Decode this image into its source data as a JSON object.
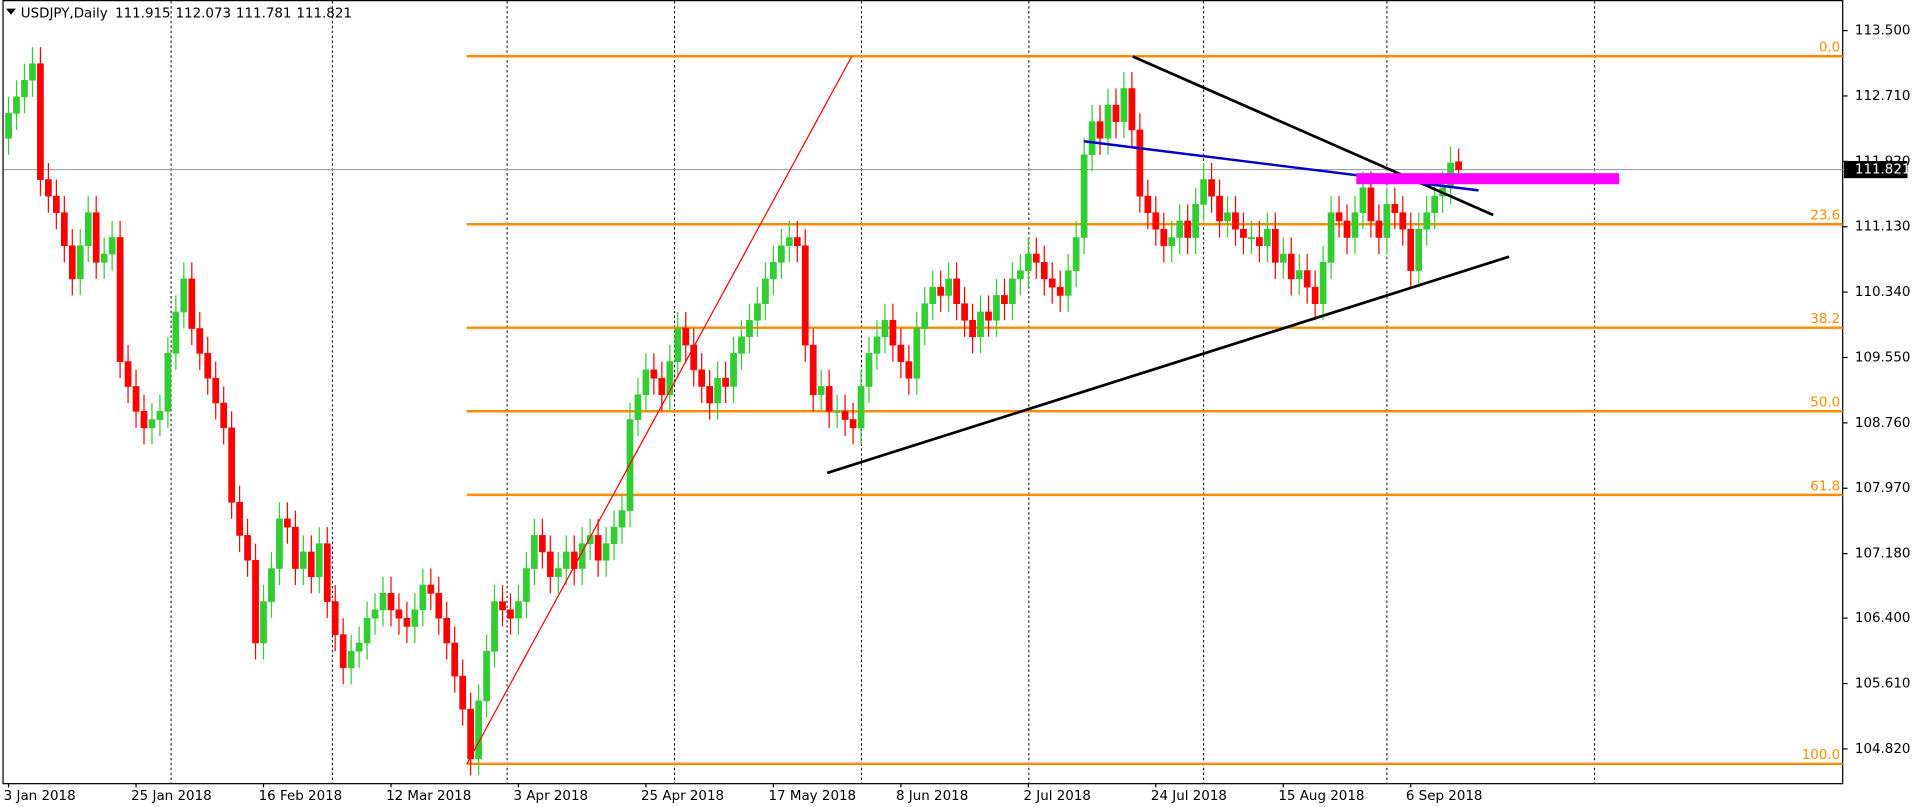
{
  "chart_data": {
    "type": "candlestick",
    "title": "USDJPY,Daily",
    "up_color": "#32cd32",
    "down_color": "#ff0000",
    "fib_color": "#ff8c00",
    "ylim": [
      104.4,
      113.87
    ],
    "yticks": [
      {
        "value": 113.5,
        "label": "113.500"
      },
      {
        "value": 112.71,
        "label": "112.710"
      },
      {
        "value": 111.92,
        "label": "111.920"
      },
      {
        "value": 111.13,
        "label": "111.130"
      },
      {
        "value": 110.34,
        "label": "110.340"
      },
      {
        "value": 109.55,
        "label": "109.550"
      },
      {
        "value": 108.76,
        "label": "108.760"
      },
      {
        "value": 107.97,
        "label": "107.970"
      },
      {
        "value": 107.18,
        "label": "107.180"
      },
      {
        "value": 106.4,
        "label": "106.400"
      },
      {
        "value": 105.61,
        "label": "105.610"
      },
      {
        "value": 104.82,
        "label": "104.820"
      }
    ],
    "fib_levels": [
      {
        "value": 113.19,
        "label": "0.0"
      },
      {
        "value": 111.16,
        "label": "23.6"
      },
      {
        "value": 109.91,
        "label": "38.2"
      },
      {
        "value": 108.9,
        "label": "50.0"
      },
      {
        "value": 107.89,
        "label": "61.8"
      },
      {
        "value": 104.64,
        "label": "100.0"
      }
    ],
    "categories": [
      "3 Jan 2018",
      null,
      null,
      null,
      null,
      null,
      null,
      null,
      null,
      null,
      null,
      null,
      null,
      null,
      null,
      null,
      "25 Jan 2018",
      null,
      null,
      null,
      null,
      null,
      null,
      null,
      null,
      null,
      null,
      null,
      null,
      null,
      null,
      null,
      "16 Feb 2018",
      null,
      null,
      null,
      null,
      null,
      null,
      null,
      null,
      null,
      null,
      null,
      null,
      null,
      null,
      null,
      "12 Mar 2018",
      null,
      null,
      null,
      null,
      null,
      null,
      null,
      null,
      null,
      null,
      null,
      null,
      null,
      null,
      null,
      "3 Apr 2018",
      null,
      null,
      null,
      null,
      null,
      null,
      null,
      null,
      null,
      null,
      null,
      null,
      null,
      null,
      null,
      "25 Apr 2018",
      null,
      null,
      null,
      null,
      null,
      null,
      null,
      null,
      null,
      null,
      null,
      null,
      null,
      null,
      null,
      "17 May 2018",
      null,
      null,
      null,
      null,
      null,
      null,
      null,
      null,
      null,
      null,
      null,
      null,
      null,
      null,
      null,
      "8 Jun 2018",
      null,
      null,
      null,
      null,
      null,
      null,
      null,
      null,
      null,
      null,
      null,
      null,
      null,
      null,
      null,
      "2 Jul 2018",
      null,
      null,
      null,
      null,
      null,
      null,
      null,
      null,
      null,
      null,
      null,
      null,
      null,
      null,
      null,
      "24 Jul 2018",
      null,
      null,
      null,
      null,
      null,
      null,
      null,
      null,
      null,
      null,
      null,
      null,
      null,
      null,
      null,
      "15 Aug 2018",
      null,
      null,
      null,
      null,
      null,
      null,
      null,
      null,
      null,
      null,
      null,
      null,
      null,
      null,
      null,
      "6 Sep 2018",
      null,
      null,
      null,
      null,
      null,
      null
    ],
    "open": [
      112.2,
      112.5,
      112.7,
      112.9,
      113.1,
      111.7,
      111.5,
      111.3,
      110.9,
      110.5,
      110.9,
      111.3,
      110.7,
      110.8,
      111.0,
      109.5,
      109.2,
      108.9,
      108.7,
      108.8,
      108.9,
      109.6,
      110.1,
      110.5,
      109.9,
      109.6,
      109.3,
      109.0,
      108.7,
      107.8,
      107.4,
      107.1,
      106.1,
      106.6,
      107.0,
      107.6,
      107.5,
      107.0,
      107.2,
      106.9,
      107.3,
      106.6,
      106.2,
      105.8,
      106.0,
      106.1,
      106.4,
      106.5,
      106.7,
      106.5,
      106.4,
      106.3,
      106.5,
      106.8,
      106.7,
      106.4,
      106.1,
      105.7,
      105.3,
      104.7,
      105.4,
      106.0,
      106.6,
      106.5,
      106.4,
      106.6,
      107.0,
      107.4,
      107.2,
      106.9,
      107.0,
      107.2,
      107.0,
      107.3,
      107.4,
      107.1,
      107.3,
      107.5,
      107.7,
      108.8,
      109.1,
      109.4,
      109.3,
      109.1,
      109.5,
      109.9,
      109.7,
      109.4,
      109.2,
      109.0,
      109.3,
      109.2,
      109.6,
      109.8,
      110.0,
      110.2,
      110.5,
      110.7,
      110.9,
      111.0,
      110.9,
      109.7,
      109.1,
      109.2,
      108.9,
      108.9,
      108.8,
      108.7,
      109.2,
      109.6,
      109.8,
      110.0,
      109.7,
      109.5,
      109.3,
      109.9,
      110.2,
      110.4,
      110.3,
      110.5,
      110.2,
      110.0,
      109.8,
      110.1,
      110.0,
      110.3,
      110.2,
      110.5,
      110.6,
      110.8,
      110.7,
      110.5,
      110.4,
      110.3,
      110.6,
      111.0,
      112.0,
      112.4,
      112.2,
      112.6,
      112.4,
      112.8,
      112.3,
      111.5,
      111.3,
      111.1,
      110.9,
      111.0,
      111.2,
      111.0,
      111.4,
      111.7,
      111.5,
      111.2,
      111.3,
      111.1,
      111.0,
      111.0,
      110.9,
      111.1,
      110.7,
      110.8,
      110.5,
      110.6,
      110.4,
      110.2,
      110.7,
      111.3,
      111.2,
      111.0,
      111.3,
      111.6,
      111.2,
      111.0,
      111.4,
      111.3,
      111.1,
      110.6,
      111.1,
      111.3,
      111.5,
      111.6,
      111.915
    ],
    "high": [
      112.7,
      112.9,
      113.1,
      113.3,
      113.3,
      111.9,
      111.7,
      111.5,
      111.1,
      111.1,
      111.5,
      111.5,
      111.0,
      111.2,
      111.2,
      109.7,
      109.4,
      109.1,
      109.0,
      109.1,
      109.8,
      110.3,
      110.7,
      110.7,
      110.1,
      109.8,
      109.5,
      109.2,
      108.9,
      108.0,
      107.6,
      107.3,
      106.8,
      107.2,
      107.8,
      107.8,
      107.7,
      107.4,
      107.4,
      107.5,
      107.5,
      106.8,
      106.4,
      106.2,
      106.3,
      106.6,
      106.7,
      106.9,
      106.9,
      106.7,
      106.6,
      106.7,
      107.0,
      107.0,
      106.9,
      106.6,
      106.3,
      105.9,
      105.5,
      105.6,
      106.2,
      106.8,
      106.8,
      106.7,
      106.8,
      107.2,
      107.6,
      107.6,
      107.4,
      107.2,
      107.4,
      107.4,
      107.5,
      107.6,
      107.6,
      107.5,
      107.7,
      107.9,
      109.0,
      109.3,
      109.6,
      109.6,
      109.5,
      109.7,
      110.1,
      110.1,
      109.9,
      109.6,
      109.4,
      109.5,
      109.5,
      109.8,
      110.0,
      110.2,
      110.4,
      110.7,
      110.9,
      111.1,
      111.2,
      111.2,
      111.1,
      109.9,
      109.4,
      109.4,
      109.1,
      109.1,
      109.0,
      109.4,
      109.8,
      110.0,
      110.2,
      110.2,
      109.9,
      109.7,
      110.1,
      110.4,
      110.6,
      110.6,
      110.7,
      110.7,
      110.4,
      110.2,
      110.3,
      110.3,
      110.5,
      110.5,
      110.7,
      110.8,
      111.0,
      111.0,
      110.9,
      110.7,
      110.6,
      110.8,
      111.2,
      112.2,
      112.6,
      112.6,
      112.8,
      112.8,
      113.0,
      113.0,
      112.5,
      111.7,
      111.5,
      111.3,
      111.2,
      111.4,
      111.4,
      111.6,
      111.9,
      111.9,
      111.7,
      111.5,
      111.5,
      111.3,
      111.2,
      111.2,
      111.3,
      111.3,
      111.0,
      111.0,
      110.8,
      110.8,
      110.6,
      110.9,
      111.5,
      111.5,
      111.4,
      111.5,
      111.8,
      111.8,
      111.4,
      111.6,
      111.6,
      111.5,
      111.3,
      111.3,
      111.5,
      111.7,
      111.8,
      112.1,
      112.073
    ],
    "low": [
      112.0,
      112.3,
      112.5,
      112.7,
      111.5,
      111.3,
      111.1,
      110.7,
      110.3,
      110.3,
      110.7,
      110.5,
      110.5,
      110.6,
      109.3,
      109.0,
      108.7,
      108.5,
      108.5,
      108.6,
      108.7,
      109.4,
      109.9,
      109.7,
      109.4,
      109.1,
      108.8,
      108.5,
      107.6,
      107.2,
      106.9,
      105.9,
      105.9,
      106.4,
      106.8,
      107.3,
      106.8,
      106.8,
      106.7,
      106.7,
      106.4,
      106.0,
      105.6,
      105.6,
      105.8,
      105.9,
      106.2,
      106.3,
      106.3,
      106.2,
      106.1,
      106.1,
      106.3,
      106.5,
      106.2,
      105.9,
      105.5,
      105.1,
      104.5,
      104.5,
      105.2,
      105.8,
      106.3,
      106.2,
      106.2,
      106.4,
      106.8,
      107.0,
      106.7,
      106.7,
      106.8,
      106.8,
      106.8,
      107.1,
      106.9,
      106.9,
      107.1,
      107.3,
      107.5,
      108.6,
      108.9,
      109.1,
      108.9,
      108.9,
      109.3,
      109.5,
      109.2,
      109.0,
      108.8,
      108.8,
      109.0,
      109.0,
      109.4,
      109.6,
      109.8,
      110.0,
      110.3,
      110.5,
      110.7,
      110.7,
      109.5,
      108.9,
      108.9,
      108.7,
      108.7,
      108.6,
      108.5,
      108.5,
      109.0,
      109.4,
      109.6,
      109.5,
      109.3,
      109.1,
      109.1,
      109.7,
      110.0,
      110.1,
      110.1,
      110.0,
      109.8,
      109.6,
      109.6,
      109.8,
      109.8,
      110.0,
      110.0,
      110.3,
      110.4,
      110.5,
      110.3,
      110.2,
      110.1,
      110.1,
      110.4,
      110.8,
      111.8,
      112.0,
      112.0,
      112.2,
      112.2,
      112.1,
      111.3,
      111.1,
      110.9,
      110.7,
      110.7,
      110.8,
      110.8,
      110.8,
      111.2,
      111.3,
      111.0,
      111.0,
      110.9,
      110.8,
      110.8,
      110.7,
      110.7,
      110.5,
      110.5,
      110.3,
      110.3,
      110.2,
      110.0,
      110.0,
      110.5,
      111.0,
      110.8,
      110.8,
      111.1,
      111.0,
      110.8,
      110.8,
      111.1,
      110.9,
      110.4,
      110.4,
      110.9,
      111.1,
      111.3,
      111.4,
      111.781
    ],
    "close": [
      112.5,
      112.7,
      112.9,
      113.1,
      111.7,
      111.5,
      111.3,
      110.9,
      110.5,
      110.9,
      111.3,
      110.7,
      110.8,
      111.0,
      109.5,
      109.2,
      108.9,
      108.7,
      108.8,
      108.9,
      109.6,
      110.1,
      110.5,
      109.9,
      109.6,
      109.3,
      109.0,
      108.7,
      107.8,
      107.4,
      107.1,
      106.1,
      106.6,
      107.0,
      107.6,
      107.5,
      107.0,
      107.2,
      106.9,
      107.3,
      106.6,
      106.2,
      105.8,
      106.0,
      106.1,
      106.4,
      106.5,
      106.7,
      106.5,
      106.4,
      106.3,
      106.5,
      106.8,
      106.7,
      106.4,
      106.1,
      105.7,
      105.3,
      104.7,
      105.4,
      106.0,
      106.6,
      106.5,
      106.4,
      106.6,
      107.0,
      107.4,
      107.2,
      106.9,
      107.0,
      107.2,
      107.0,
      107.3,
      107.4,
      107.1,
      107.3,
      107.5,
      107.7,
      108.8,
      109.1,
      109.4,
      109.3,
      109.1,
      109.5,
      109.9,
      109.7,
      109.4,
      109.2,
      109.0,
      109.3,
      109.2,
      109.6,
      109.8,
      110.0,
      110.2,
      110.5,
      110.7,
      110.9,
      111.0,
      110.9,
      109.7,
      109.1,
      109.2,
      108.9,
      108.9,
      108.8,
      108.7,
      109.2,
      109.6,
      109.8,
      110.0,
      109.7,
      109.5,
      109.3,
      109.9,
      110.2,
      110.4,
      110.3,
      110.5,
      110.2,
      110.0,
      109.8,
      110.1,
      110.0,
      110.3,
      110.2,
      110.5,
      110.6,
      110.8,
      110.7,
      110.5,
      110.4,
      110.3,
      110.6,
      111.0,
      112.0,
      112.4,
      112.2,
      112.6,
      112.4,
      112.8,
      112.3,
      111.5,
      111.3,
      111.1,
      110.9,
      111.0,
      111.2,
      111.0,
      111.4,
      111.7,
      111.5,
      111.2,
      111.3,
      111.1,
      111.0,
      111.0,
      110.9,
      111.1,
      110.7,
      110.8,
      110.5,
      110.6,
      110.4,
      110.2,
      110.7,
      111.3,
      111.2,
      111.0,
      111.3,
      111.6,
      111.2,
      111.0,
      111.4,
      111.3,
      111.1,
      110.6,
      111.1,
      111.3,
      111.5,
      111.6,
      111.9,
      111.821
    ]
  }
}
